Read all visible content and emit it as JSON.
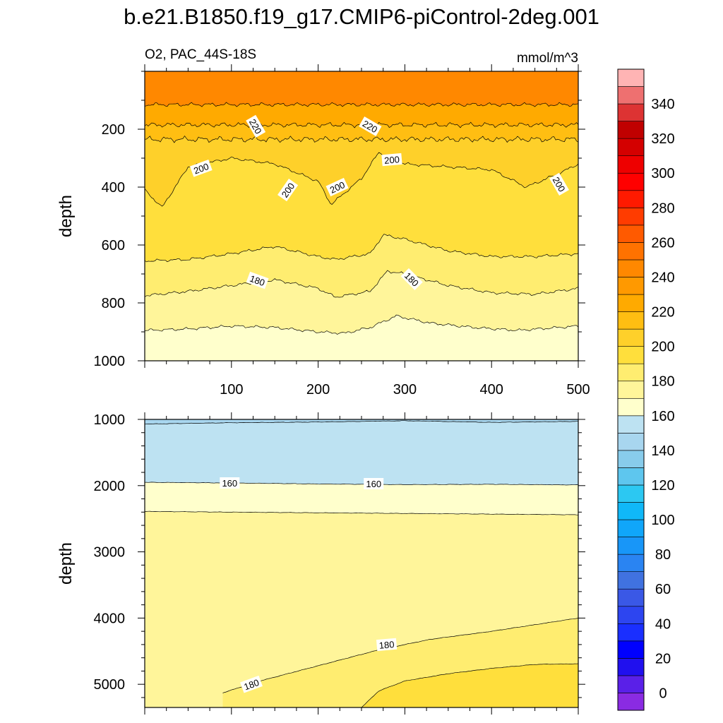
{
  "title": "b.e21.B1850.f19_g17.CMIP6-piControl-2deg.001",
  "chart_data": [
    {
      "type": "contour",
      "panel": "upper",
      "left_label": "O2, PAC_44S-18S",
      "right_label": "mmol/m^3",
      "ylabel": "depth",
      "xlabel": "",
      "xlim": [
        0,
        500
      ],
      "ylim": [
        1000,
        0
      ],
      "xticks": [
        100,
        200,
        300,
        400,
        500
      ],
      "yticks": [
        200,
        400,
        600,
        800,
        1000
      ],
      "contours": [
        {
          "level": 230,
          "base_depth": 115,
          "amplitude": 8,
          "x": [
            0,
            500
          ]
        },
        {
          "level": 220,
          "base_depth": 185,
          "amplitude": 10,
          "x": [
            0,
            500
          ]
        },
        {
          "level": 210,
          "base_depth": 235,
          "amplitude": 12,
          "x": [
            0,
            500
          ]
        },
        {
          "level": 200,
          "depth_x": [
            0,
            20,
            50,
            100,
            150,
            200,
            215,
            250,
            270,
            300,
            350,
            400,
            440,
            480,
            500
          ],
          "depth_y": [
            410,
            470,
            330,
            300,
            320,
            380,
            460,
            370,
            280,
            320,
            330,
            340,
            400,
            350,
            320
          ]
        },
        {
          "level": 190,
          "depth_x": [
            0,
            50,
            100,
            150,
            200,
            220,
            260,
            275,
            300,
            350,
            400,
            450,
            500
          ],
          "depth_y": [
            655,
            650,
            630,
            605,
            640,
            650,
            630,
            565,
            580,
            620,
            640,
            640,
            630
          ]
        },
        {
          "level": 180,
          "depth_x": [
            0,
            50,
            100,
            150,
            200,
            220,
            260,
            280,
            300,
            350,
            400,
            450,
            500
          ],
          "depth_y": [
            775,
            760,
            740,
            720,
            750,
            780,
            760,
            690,
            700,
            740,
            765,
            770,
            750
          ]
        },
        {
          "level": 170,
          "depth_x": [
            0,
            50,
            100,
            150,
            200,
            230,
            260,
            290,
            330,
            380,
            430,
            500
          ],
          "depth_y": [
            895,
            890,
            880,
            885,
            900,
            905,
            885,
            845,
            870,
            885,
            895,
            880
          ]
        }
      ],
      "labels": [
        {
          "text": "220",
          "x": 128,
          "y": 190,
          "angle": 60
        },
        {
          "text": "220",
          "x": 260,
          "y": 190,
          "angle": 30
        },
        {
          "text": "200",
          "x": 65,
          "y": 335,
          "angle": -20
        },
        {
          "text": "200",
          "x": 165,
          "y": 410,
          "angle": -55
        },
        {
          "text": "200",
          "x": 222,
          "y": 400,
          "angle": -25
        },
        {
          "text": "200",
          "x": 285,
          "y": 305,
          "angle": -5
        },
        {
          "text": "200",
          "x": 478,
          "y": 390,
          "angle": 60
        },
        {
          "text": "180",
          "x": 130,
          "y": 722,
          "angle": 20
        },
        {
          "text": "180",
          "x": 308,
          "y": 718,
          "angle": 45
        }
      ]
    },
    {
      "type": "contour",
      "panel": "lower",
      "ylabel": "depth",
      "xlabel": "",
      "xlim": [
        0,
        500
      ],
      "ylim": [
        5350,
        1000
      ],
      "yticks": [
        1000,
        2000,
        3000,
        4000,
        5000
      ],
      "contours": [
        {
          "level": 150,
          "depth_x": [
            0,
            100,
            200,
            300,
            400,
            500
          ],
          "depth_y": [
            1070,
            1050,
            1040,
            1020,
            1045,
            1030
          ]
        },
        {
          "level": 160,
          "depth_x": [
            0,
            100,
            200,
            300,
            400,
            500
          ],
          "depth_y": [
            1950,
            1960,
            1975,
            1985,
            1980,
            1990
          ]
        },
        {
          "level": 170,
          "depth_x": [
            0,
            100,
            200,
            300,
            400,
            500
          ],
          "depth_y": [
            2390,
            2400,
            2410,
            2420,
            2430,
            2440
          ]
        },
        {
          "level": 180,
          "depth_x": [
            90,
            130,
            200,
            270,
            330,
            400,
            500
          ],
          "depth_y": [
            5130,
            4960,
            4720,
            4480,
            4320,
            4200,
            4000
          ]
        },
        {
          "level": 190,
          "depth_x": [
            250,
            270,
            300,
            350,
            400,
            450,
            500
          ],
          "depth_y": [
            5350,
            5100,
            4950,
            4840,
            4760,
            4700,
            4690
          ]
        }
      ],
      "labels": [
        {
          "text": "160",
          "x": 98,
          "y": 1960,
          "angle": 0
        },
        {
          "text": "160",
          "x": 264,
          "y": 1970,
          "angle": 0
        },
        {
          "text": "180",
          "x": 279,
          "y": 4400,
          "angle": -5
        },
        {
          "text": "180",
          "x": 123,
          "y": 5000,
          "angle": -20
        }
      ]
    }
  ],
  "colorbar": {
    "orientation": "vertical",
    "levels": [
      0,
      10,
      20,
      30,
      40,
      50,
      60,
      70,
      80,
      90,
      100,
      110,
      120,
      130,
      140,
      150,
      160,
      170,
      180,
      190,
      200,
      210,
      220,
      230,
      240,
      250,
      260,
      270,
      280,
      290,
      300,
      310,
      320,
      330,
      340,
      350
    ],
    "tick_labels": [
      "0",
      "20",
      "40",
      "60",
      "80",
      "100",
      "120",
      "140",
      "160",
      "180",
      "200",
      "220",
      "240",
      "260",
      "280",
      "300",
      "320",
      "340"
    ],
    "colors": [
      "#8a2be2",
      "#5a20e8",
      "#2010ee",
      "#0000ff",
      "#1a2fff",
      "#2d45f0",
      "#3a58e6",
      "#4072e0",
      "#2a84f2",
      "#1896f8",
      "#10a6fa",
      "#10b8f8",
      "#2cc8f2",
      "#5ec6ee",
      "#88cceb",
      "#a8d6ef",
      "#bde2f2",
      "#ffffcc",
      "#fff59a",
      "#ffed70",
      "#ffdf3c",
      "#fed02a",
      "#ffbe12",
      "#ffaa00",
      "#ff9900",
      "#ff8800",
      "#ff7200",
      "#ff5a00",
      "#ff3c00",
      "#ff1a00",
      "#ff0000",
      "#ee0000",
      "#d40000",
      "#c00000",
      "#dd3333",
      "#ee7070",
      "#ffb4b4"
    ]
  }
}
